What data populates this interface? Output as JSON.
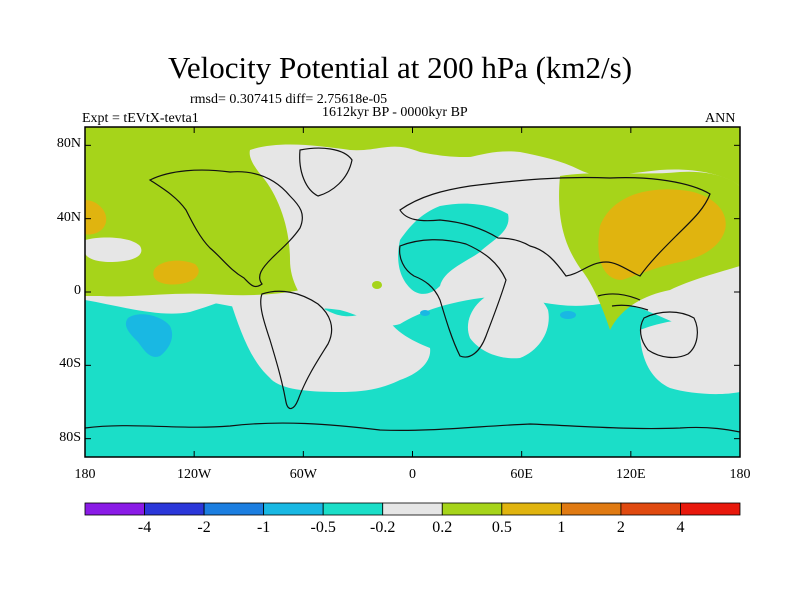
{
  "title": "Velocity Potential at 200 hPa (km2/s)",
  "stats": "rmsd= 0.307415 diff= 2.75618e-05",
  "period": "1612kyr BP - 0000kyr BP",
  "experiment": "Expt = tEVtX-tevta1",
  "season": "ANN",
  "axes": {
    "lat_ticks": [
      {
        "label": "80N",
        "value": 80
      },
      {
        "label": "40N",
        "value": 40
      },
      {
        "label": "0",
        "value": 0
      },
      {
        "label": "40S",
        "value": -40
      },
      {
        "label": "80S",
        "value": -80
      }
    ],
    "lon_ticks": [
      {
        "label": "180",
        "value": -180
      },
      {
        "label": "120W",
        "value": -120
      },
      {
        "label": "60W",
        "value": -60
      },
      {
        "label": "0",
        "value": 0
      },
      {
        "label": "60E",
        "value": 60
      },
      {
        "label": "120E",
        "value": 120
      },
      {
        "label": "180",
        "value": 180
      }
    ],
    "lon_range": [
      -180,
      180
    ],
    "lat_range": [
      -90,
      90
    ]
  },
  "colorbar": {
    "labels": [
      "-4",
      "-2",
      "-1",
      "-0.5",
      "-0.2",
      "0.2",
      "0.5",
      "1",
      "2",
      "4"
    ],
    "colors": [
      "#8a1be6",
      "#2b37d9",
      "#1c7ee0",
      "#19b8e3",
      "#1bdec8",
      "#e6e6e6",
      "#a6d41a",
      "#e0b40f",
      "#e07a12",
      "#e04a10",
      "#e8180c"
    ]
  },
  "field_colors": {
    "neg05": "#19b8e3",
    "neg02": "#1bdec8",
    "neutral": "#e6e6e6",
    "pos02": "#a6d41a",
    "pos05": "#e0b40f"
  }
}
